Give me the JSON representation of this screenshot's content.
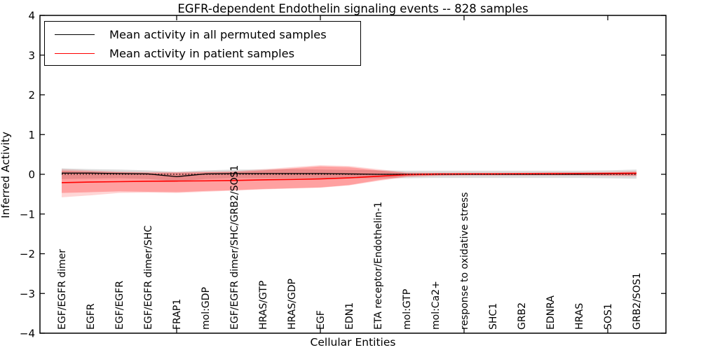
{
  "title": "EGFR-dependent Endothelin signaling events -- 828 samples",
  "legend": {
    "items": [
      {
        "label": "Mean activity in all permuted samples",
        "color": "#000000"
      },
      {
        "label": "Mean activity in patient samples",
        "color": "#ff0000"
      }
    ]
  },
  "chart_data": {
    "type": "line",
    "title": "EGFR-dependent Endothelin signaling events -- 828 samples",
    "xlabel": "Cellular Entities",
    "ylabel": "Inferred Activity",
    "ylim": [
      -4,
      4
    ],
    "yticks": [
      4,
      3,
      2,
      1,
      0,
      -1,
      -2,
      -3,
      -4
    ],
    "ytick_labels": [
      "4",
      "3",
      "2",
      "1",
      "0",
      "−1",
      "−2",
      "−3",
      "−4"
    ],
    "x_major_tick_indices": [
      4,
      9,
      14,
      19
    ],
    "grid": false,
    "legend_position": "upper left",
    "categories": [
      "EGF/EGFR dimer",
      "EGFR",
      "EGF/EGFR",
      "EGF/EGFR dimer/SHC",
      "FRAP1",
      "mol:GDP",
      "EGF/EGFR dimer/SHC/GRB2/SOS1",
      "HRAS/GTP",
      "HRAS/GDP",
      "EGF",
      "EDN1",
      "ETA receptor/Endothelin-1",
      "mol:GTP",
      "mol:Ca2+",
      "response to oxidative stress",
      "SHC1",
      "GRB2",
      "EDNRA",
      "HRAS",
      "SOS1",
      "GRB2/SOS1"
    ],
    "series": [
      {
        "name": "Mean activity in all permuted samples",
        "color": "#000000",
        "style": "solid",
        "width": 1.3,
        "values": [
          0.03,
          0.03,
          0.02,
          0.01,
          -0.06,
          0.01,
          0.02,
          0.02,
          0.02,
          0.02,
          0.01,
          0.0,
          0.0,
          0.0,
          0.0,
          0.0,
          0.0,
          0.0,
          0.0,
          0.01,
          0.02
        ]
      },
      {
        "name": "Mean activity in patient samples",
        "color": "#ff0000",
        "style": "solid",
        "width": 1.6,
        "values": [
          -0.21,
          -0.195,
          -0.185,
          -0.175,
          -0.17,
          -0.165,
          -0.155,
          -0.14,
          -0.13,
          -0.115,
          -0.09,
          -0.05,
          -0.01,
          0.005,
          0.01,
          0.01,
          0.015,
          0.015,
          0.02,
          0.02,
          0.025
        ]
      },
      {
        "name": "zero-baseline",
        "color": "#000000",
        "style": "dotted",
        "width": 1.2,
        "values": [
          0,
          0,
          0,
          0,
          0,
          0,
          0,
          0,
          0,
          0,
          0,
          0,
          0,
          0,
          0,
          0,
          0,
          0,
          0,
          0,
          0
        ]
      }
    ],
    "bands": [
      {
        "name": "permuted-range",
        "color": "rgba(120,120,120,0.25)",
        "upper": [
          0.15,
          0.13,
          0.12,
          0.1,
          0.06,
          0.1,
          0.12,
          0.12,
          0.13,
          0.12,
          0.11,
          0.1,
          0.09,
          0.09,
          0.09,
          0.09,
          0.09,
          0.09,
          0.09,
          0.1,
          0.12
        ],
        "lower": [
          -0.12,
          -0.11,
          -0.1,
          -0.12,
          -0.18,
          -0.12,
          -0.1,
          -0.1,
          -0.1,
          -0.1,
          -0.1,
          -0.1,
          -0.1,
          -0.09,
          -0.09,
          -0.09,
          -0.09,
          -0.09,
          -0.09,
          -0.1,
          -0.11
        ]
      },
      {
        "name": "patient-range-outer",
        "color": "rgba(255,0,0,0.16)",
        "upper": [
          0.13,
          0.1,
          0.07,
          0.06,
          0.06,
          0.07,
          0.08,
          0.13,
          0.18,
          0.23,
          0.21,
          0.13,
          0.05,
          0.04,
          0.04,
          0.04,
          0.04,
          0.05,
          0.05,
          0.06,
          0.08
        ],
        "lower": [
          -0.58,
          -0.53,
          -0.47,
          -0.46,
          -0.47,
          -0.44,
          -0.41,
          -0.38,
          -0.36,
          -0.34,
          -0.28,
          -0.17,
          -0.07,
          -0.04,
          -0.03,
          -0.03,
          -0.03,
          -0.03,
          -0.03,
          -0.04,
          -0.05
        ]
      },
      {
        "name": "patient-range-inner",
        "color": "rgba(255,0,0,0.25)",
        "upper": [
          0.09,
          0.07,
          0.05,
          0.04,
          0.04,
          0.05,
          0.06,
          0.1,
          0.15,
          0.2,
          0.18,
          0.1,
          0.03,
          0.03,
          0.03,
          0.03,
          0.03,
          0.04,
          0.04,
          0.05,
          0.06
        ],
        "lower": [
          -0.47,
          -0.45,
          -0.43,
          -0.44,
          -0.45,
          -0.42,
          -0.4,
          -0.37,
          -0.35,
          -0.33,
          -0.27,
          -0.15,
          -0.05,
          -0.03,
          -0.02,
          -0.02,
          -0.02,
          -0.02,
          -0.02,
          -0.03,
          -0.03
        ]
      }
    ]
  }
}
